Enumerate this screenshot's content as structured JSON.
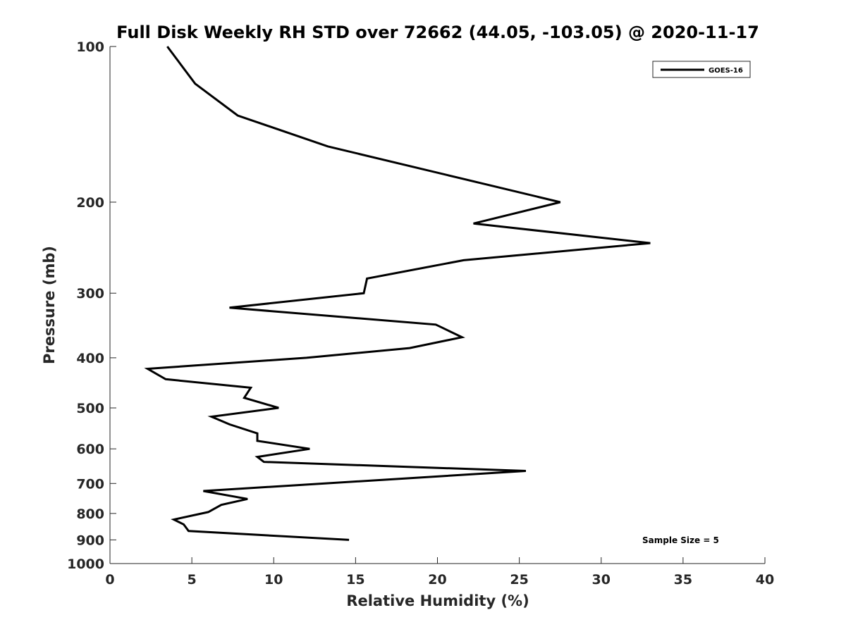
{
  "chart_data": {
    "type": "line",
    "title": "Full Disk Weekly RH STD over 72662 (44.05, -103.05) @ 2020-11-17",
    "xlabel": "Relative Humidity (%)",
    "ylabel": "Pressure (mb)",
    "xlim": [
      0,
      40
    ],
    "ylim": [
      100,
      1000
    ],
    "yscale": "log",
    "yreversed": true,
    "xticks": [
      0,
      5,
      10,
      15,
      20,
      25,
      30,
      35,
      40
    ],
    "yticks": [
      100,
      200,
      300,
      400,
      500,
      600,
      700,
      800,
      900,
      1000
    ],
    "legend_position": "top-right",
    "annotation": "Sample Size = 5",
    "colors": {
      "series": "#000000",
      "axes": "#262626",
      "background": "#ffffff"
    },
    "series": [
      {
        "name": "GOES-16",
        "x": [
          3.5,
          5.2,
          7.8,
          13.3,
          27.5,
          22.2,
          33.0,
          21.6,
          15.7,
          15.5,
          7.3,
          19.9,
          21.5,
          18.3,
          12.0,
          2.3,
          3.4,
          8.6,
          8.2,
          10.3,
          6.2,
          7.3,
          9.0,
          9.0,
          12.2,
          9.0,
          9.4,
          25.4,
          5.7,
          8.4,
          6.8,
          6.0,
          3.9,
          4.5,
          4.8,
          14.6
        ],
        "y": [
          100,
          118,
          136,
          156,
          200,
          220,
          240,
          259,
          281,
          300,
          320,
          345,
          365,
          383,
          400,
          420,
          440,
          457,
          478,
          500,
          520,
          538,
          560,
          579,
          600,
          622,
          636,
          662,
          724,
          750,
          770,
          795,
          822,
          840,
          865,
          900
        ]
      }
    ]
  }
}
